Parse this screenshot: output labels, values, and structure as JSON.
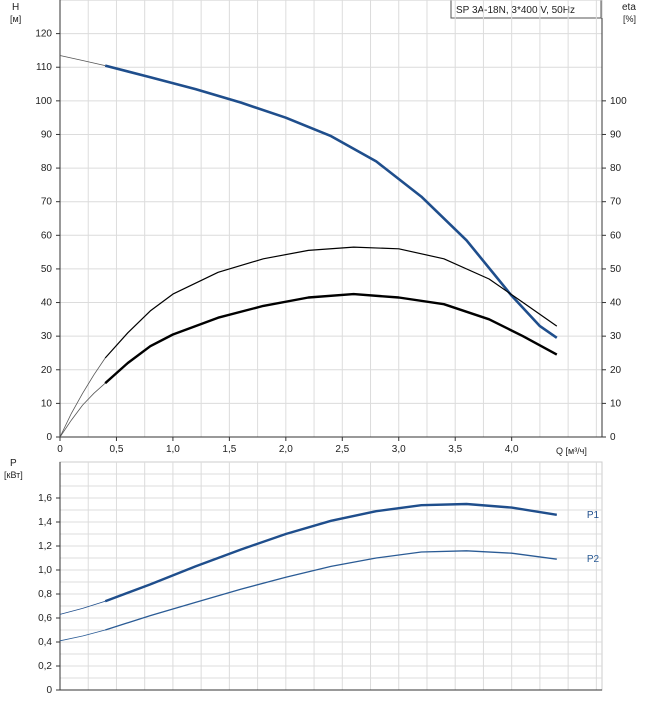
{
  "chart_data": [
    {
      "type": "line",
      "title": "SP 3A-18N, 3*400 V, 50Hz",
      "ylabel_left": "H",
      "ylabel_left_unit": "[м]",
      "ylabel_right": "eta",
      "ylabel_right_unit": "[%]",
      "xlabel": "Q [м³/ч]",
      "xlim": [
        0,
        4.8
      ],
      "ylim": [
        0,
        130
      ],
      "x_ticks": [
        "0",
        "0,5",
        "1,0",
        "1,5",
        "2,0",
        "2,5",
        "3,0",
        "3,5",
        "4,0"
      ],
      "x_tick_values": [
        0,
        0.5,
        1.0,
        1.5,
        2.0,
        2.5,
        3.0,
        3.5,
        4.0
      ],
      "y_ticks_left": [
        "0",
        "10",
        "20",
        "30",
        "40",
        "50",
        "60",
        "70",
        "80",
        "90",
        "100",
        "110",
        "120"
      ],
      "y_tick_values_left": [
        0,
        10,
        20,
        30,
        40,
        50,
        60,
        70,
        80,
        90,
        100,
        110,
        120
      ],
      "y_ticks_right": [
        "0",
        "10",
        "20",
        "30",
        "40",
        "50",
        "60",
        "70",
        "80",
        "90",
        "100"
      ],
      "y_tick_values_right": [
        0,
        10,
        20,
        30,
        40,
        50,
        60,
        70,
        80,
        90,
        100
      ],
      "grid": true,
      "series": [
        {
          "role": "head",
          "color": "#1f4e8c",
          "extension": [
            [
              0,
              113.5
            ],
            [
              0.2,
              112.0
            ],
            [
              0.4,
              110.5
            ]
          ],
          "points": [
            [
              0.4,
              110.5
            ],
            [
              0.8,
              107.0
            ],
            [
              1.2,
              103.5
            ],
            [
              1.6,
              99.5
            ],
            [
              2.0,
              95.0
            ],
            [
              2.4,
              89.5
            ],
            [
              2.8,
              82.0
            ],
            [
              3.2,
              71.5
            ],
            [
              3.6,
              58.5
            ],
            [
              4.0,
              42.0
            ],
            [
              4.25,
              33.0
            ],
            [
              4.4,
              29.5
            ]
          ]
        },
        {
          "role": "eta-upper",
          "color": "#000000",
          "extension": [
            [
              0,
              0
            ],
            [
              0.1,
              7.0
            ],
            [
              0.2,
              13.0
            ],
            [
              0.3,
              18.5
            ],
            [
              0.4,
              23.5
            ]
          ],
          "points": [
            [
              0.4,
              23.5
            ],
            [
              0.6,
              31.0
            ],
            [
              0.8,
              37.5
            ],
            [
              1.0,
              42.5
            ],
            [
              1.4,
              49.0
            ],
            [
              1.8,
              53.0
            ],
            [
              2.2,
              55.5
            ],
            [
              2.6,
              56.5
            ],
            [
              3.0,
              56.0
            ],
            [
              3.4,
              53.0
            ],
            [
              3.8,
              47.0
            ],
            [
              4.1,
              40.0
            ],
            [
              4.4,
              33.0
            ]
          ]
        },
        {
          "role": "eta-lower",
          "color": "#000000",
          "extension": [
            [
              0,
              0
            ],
            [
              0.1,
              5.0
            ],
            [
              0.2,
              9.5
            ],
            [
              0.3,
              13.0
            ],
            [
              0.4,
              16.0
            ]
          ],
          "points": [
            [
              0.4,
              16.0
            ],
            [
              0.6,
              22.0
            ],
            [
              0.8,
              27.0
            ],
            [
              1.0,
              30.5
            ],
            [
              1.4,
              35.5
            ],
            [
              1.8,
              39.0
            ],
            [
              2.2,
              41.5
            ],
            [
              2.6,
              42.5
            ],
            [
              3.0,
              41.5
            ],
            [
              3.4,
              39.5
            ],
            [
              3.8,
              35.0
            ],
            [
              4.1,
              30.0
            ],
            [
              4.4,
              24.5
            ]
          ]
        }
      ]
    },
    {
      "type": "line",
      "ylabel": "P",
      "ylabel_unit": "[кВт]",
      "xlim": [
        0,
        4.8
      ],
      "ylim": [
        0,
        1.9
      ],
      "y_ticks": [
        "0",
        "0,2",
        "0,4",
        "0,6",
        "0,8",
        "1,0",
        "1,2",
        "1,4",
        "1,6"
      ],
      "y_tick_values": [
        0,
        0.2,
        0.4,
        0.6,
        0.8,
        1.0,
        1.2,
        1.4,
        1.6
      ],
      "grid": true,
      "series": [
        {
          "name": "P1",
          "color": "#1f4e8c",
          "extension": [
            [
              0,
              0.63
            ],
            [
              0.2,
              0.68
            ],
            [
              0.4,
              0.74
            ]
          ],
          "points": [
            [
              0.4,
              0.74
            ],
            [
              0.8,
              0.88
            ],
            [
              1.2,
              1.03
            ],
            [
              1.6,
              1.17
            ],
            [
              2.0,
              1.3
            ],
            [
              2.4,
              1.41
            ],
            [
              2.8,
              1.49
            ],
            [
              3.2,
              1.54
            ],
            [
              3.6,
              1.55
            ],
            [
              4.0,
              1.52
            ],
            [
              4.4,
              1.46
            ]
          ]
        },
        {
          "name": "P2",
          "color": "#2a5b95",
          "extension": [
            [
              0,
              0.41
            ],
            [
              0.2,
              0.45
            ],
            [
              0.4,
              0.5
            ]
          ],
          "points": [
            [
              0.4,
              0.5
            ],
            [
              0.8,
              0.62
            ],
            [
              1.2,
              0.73
            ],
            [
              1.6,
              0.84
            ],
            [
              2.0,
              0.94
            ],
            [
              2.4,
              1.03
            ],
            [
              2.8,
              1.1
            ],
            [
              3.2,
              1.15
            ],
            [
              3.6,
              1.16
            ],
            [
              4.0,
              1.14
            ],
            [
              4.4,
              1.09
            ]
          ]
        }
      ]
    }
  ]
}
